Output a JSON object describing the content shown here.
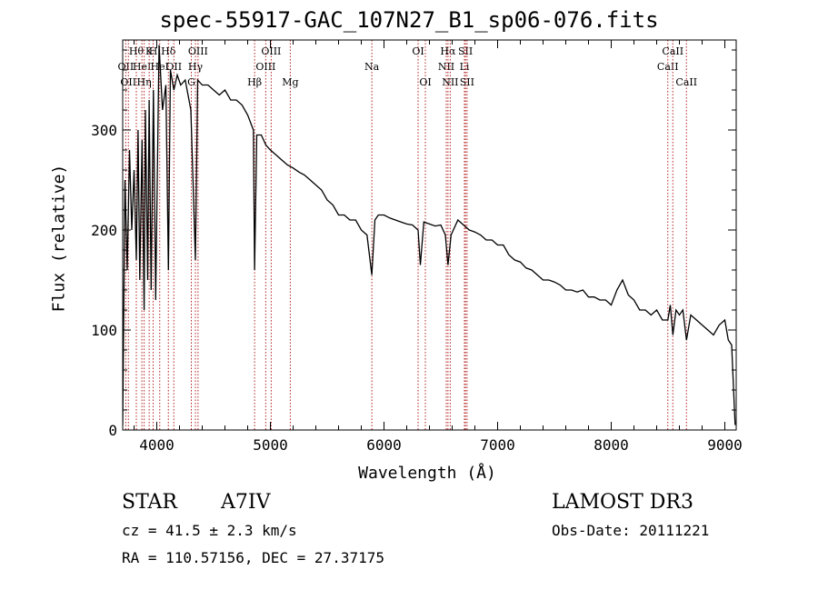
{
  "chart_data": {
    "type": "line",
    "title": "spec-55917-GAC_107N27_B1_sp06-076.fits",
    "xlabel": "Wavelength (Å)",
    "ylabel": "Flux (relative)",
    "xlim": [
      3700,
      9100
    ],
    "ylim": [
      0,
      390
    ],
    "xticks": [
      4000,
      5000,
      6000,
      7000,
      8000,
      9000
    ],
    "yticks": [
      0,
      100,
      200,
      300
    ],
    "series": [
      {
        "name": "spectrum",
        "x": [
          3700,
          3720,
          3740,
          3760,
          3780,
          3800,
          3820,
          3835,
          3850,
          3870,
          3889,
          3900,
          3920,
          3933,
          3950,
          3970,
          3990,
          4020,
          4050,
          4080,
          4102,
          4120,
          4150,
          4180,
          4210,
          4250,
          4300,
          4340,
          4360,
          4400,
          4450,
          4500,
          4550,
          4600,
          4650,
          4700,
          4750,
          4800,
          4850,
          4861,
          4880,
          4920,
          4960,
          5000,
          5050,
          5100,
          5150,
          5200,
          5250,
          5300,
          5350,
          5400,
          5450,
          5500,
          5550,
          5600,
          5650,
          5700,
          5750,
          5800,
          5850,
          5893,
          5920,
          5950,
          6000,
          6050,
          6100,
          6150,
          6200,
          6250,
          6300,
          6320,
          6350,
          6400,
          6450,
          6500,
          6540,
          6563,
          6590,
          6650,
          6700,
          6750,
          6800,
          6850,
          6900,
          6950,
          7000,
          7050,
          7100,
          7150,
          7200,
          7250,
          7300,
          7350,
          7400,
          7450,
          7500,
          7550,
          7600,
          7650,
          7700,
          7750,
          7800,
          7850,
          7900,
          7950,
          8000,
          8050,
          8100,
          8150,
          8200,
          8250,
          8300,
          8350,
          8400,
          8450,
          8498,
          8520,
          8542,
          8570,
          8600,
          8630,
          8662,
          8700,
          8750,
          8800,
          8850,
          8900,
          8950,
          9000,
          9030,
          9060,
          9090
        ],
        "y": [
          5,
          250,
          160,
          280,
          200,
          260,
          170,
          300,
          150,
          290,
          120,
          320,
          150,
          330,
          140,
          340,
          130,
          385,
          320,
          345,
          160,
          360,
          340,
          355,
          345,
          350,
          320,
          170,
          350,
          345,
          345,
          340,
          335,
          340,
          330,
          330,
          325,
          315,
          300,
          160,
          295,
          295,
          285,
          280,
          275,
          270,
          265,
          262,
          258,
          255,
          250,
          245,
          240,
          230,
          225,
          215,
          215,
          210,
          210,
          200,
          195,
          155,
          210,
          215,
          215,
          212,
          210,
          208,
          206,
          205,
          200,
          165,
          208,
          206,
          204,
          205,
          195,
          165,
          195,
          210,
          205,
          200,
          198,
          195,
          190,
          190,
          185,
          185,
          175,
          170,
          168,
          162,
          160,
          155,
          150,
          150,
          148,
          145,
          140,
          140,
          138,
          140,
          133,
          133,
          130,
          130,
          125,
          140,
          150,
          135,
          130,
          120,
          120,
          115,
          120,
          110,
          110,
          125,
          95,
          120,
          115,
          120,
          90,
          115,
          110,
          105,
          100,
          95,
          105,
          110,
          90,
          85,
          5
        ]
      }
    ],
    "line_markers": [
      {
        "wl": 3727,
        "label": "OII",
        "row": 2
      },
      {
        "wl": 3750,
        "label": "OII",
        "row": 3
      },
      {
        "wl": 3820,
        "label": "Hθ",
        "row": 1
      },
      {
        "wl": 3869,
        "label": "HeI",
        "row": 2
      },
      {
        "wl": 3889,
        "label": "Hη",
        "row": 3
      },
      {
        "wl": 3933,
        "label": "K",
        "row": 1
      },
      {
        "wl": 3968,
        "label": "H",
        "row": 1
      },
      {
        "wl": 4026,
        "label": "HeI",
        "row": 2
      },
      {
        "wl": 4102,
        "label": "Hδ",
        "row": 1
      },
      {
        "wl": 4150,
        "label": "OII",
        "row": 2
      },
      {
        "wl": 4304,
        "label": "G",
        "row": 3
      },
      {
        "wl": 4340,
        "label": "Hγ",
        "row": 2
      },
      {
        "wl": 4363,
        "label": "OIII",
        "row": 1
      },
      {
        "wl": 4861,
        "label": "Hβ",
        "row": 3
      },
      {
        "wl": 4959,
        "label": "OIII",
        "row": 2
      },
      {
        "wl": 5007,
        "label": "OIII",
        "row": 1
      },
      {
        "wl": 5175,
        "label": "Mg",
        "row": 3
      },
      {
        "wl": 5893,
        "label": "Na",
        "row": 2
      },
      {
        "wl": 6300,
        "label": "OI",
        "row": 1
      },
      {
        "wl": 6364,
        "label": "OI",
        "row": 3
      },
      {
        "wl": 6548,
        "label": "NII",
        "row": 2
      },
      {
        "wl": 6563,
        "label": "Hα",
        "row": 1
      },
      {
        "wl": 6583,
        "label": "NII",
        "row": 3
      },
      {
        "wl": 6708,
        "label": "Li",
        "row": 2
      },
      {
        "wl": 6717,
        "label": "SII",
        "row": 1
      },
      {
        "wl": 6731,
        "label": "SII",
        "row": 3
      },
      {
        "wl": 8498,
        "label": "CaII",
        "row": 2
      },
      {
        "wl": 8542,
        "label": "CaII",
        "row": 1
      },
      {
        "wl": 8662,
        "label": "CaII",
        "row": 3
      }
    ]
  },
  "info": {
    "object_class": "STAR",
    "subclass": "A7IV",
    "survey": "LAMOST DR3",
    "cz": "cz = 41.5 ± 2.3 km/s",
    "obs_date": "Obs-Date: 20111221",
    "coords": "RA = 110.57156, DEC =  27.37175"
  },
  "colors": {
    "line": "#000000",
    "marker": "#b22222",
    "axis": "#000000"
  }
}
